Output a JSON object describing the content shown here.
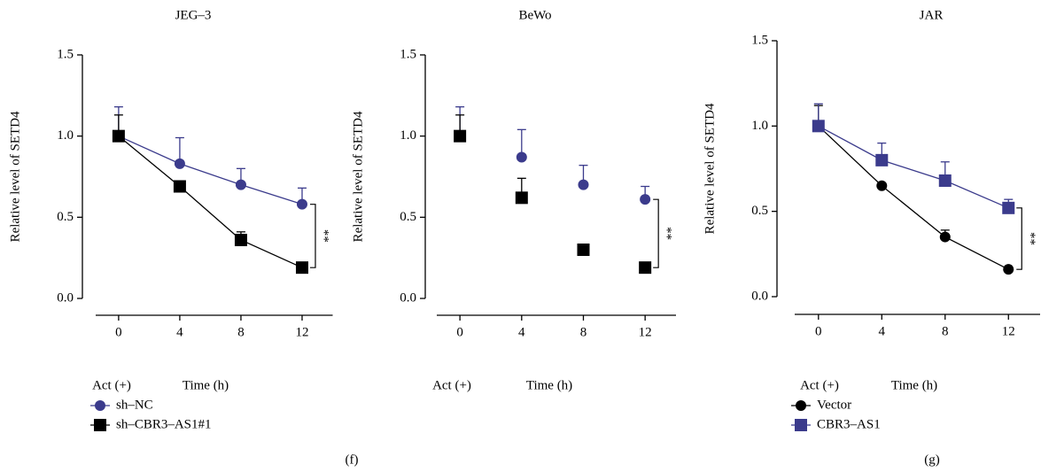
{
  "chart_data": [
    {
      "type": "line",
      "title": "JEG–3",
      "ylabel": "Relative level of SETD4",
      "xlabel": "Time (h)",
      "treatment_label": "Act (+)",
      "significance": "**",
      "x": [
        0,
        4,
        8,
        12
      ],
      "xlim": [
        -1.5,
        14
      ],
      "xticks": [
        0,
        4,
        8,
        12
      ],
      "ylim": [
        0,
        1.5
      ],
      "yticks": [
        {
          "value": 0,
          "label": "0.0"
        },
        {
          "value": 0.5,
          "label": "0.5"
        },
        {
          "value": 1.0,
          "label": "1.0"
        },
        {
          "value": 1.5,
          "label": "1.5"
        }
      ],
      "legend": "bottom-left",
      "series": [
        {
          "name": "sh–NC",
          "color": "#3b3b8c",
          "marker": "circle",
          "values": [
            1.0,
            0.83,
            0.7,
            0.58
          ],
          "errors": [
            0.18,
            0.16,
            0.1,
            0.1
          ]
        },
        {
          "name": "sh–CBR3–AS1#1",
          "color": "#000000",
          "marker": "square",
          "values": [
            1.0,
            0.69,
            0.36,
            0.19
          ],
          "errors": [
            0.13,
            0.03,
            0.05,
            0.01
          ]
        }
      ]
    },
    {
      "type": "scatter",
      "title": "BeWo",
      "ylabel": "Relative level of SETD4",
      "xlabel": "Time (h)",
      "treatment_label": "Act (+)",
      "significance": "**",
      "x": [
        0,
        4,
        8,
        12
      ],
      "xlim": [
        -1.5,
        14
      ],
      "xticks": [
        0,
        4,
        8,
        12
      ],
      "ylim": [
        0,
        1.5
      ],
      "yticks": [
        {
          "value": 0,
          "label": "0.0"
        },
        {
          "value": 0.5,
          "label": "0.5"
        },
        {
          "value": 1.0,
          "label": "1.0"
        },
        {
          "value": 1.5,
          "label": "1.5"
        }
      ],
      "series": [
        {
          "color": "#3b3b8c",
          "marker": "circle",
          "values": [
            1.0,
            0.87,
            0.7,
            0.61
          ],
          "errors": [
            0.18,
            0.17,
            0.12,
            0.08
          ]
        },
        {
          "color": "#000000",
          "marker": "square",
          "values": [
            1.0,
            0.62,
            0.3,
            0.19
          ],
          "errors": [
            0.13,
            0.12,
            0.03,
            0.01
          ]
        }
      ]
    },
    {
      "type": "line",
      "title": "JAR",
      "ylabel": "Relative level of SETD4",
      "xlabel": "Time (h)",
      "treatment_label": "Act (+)",
      "significance": "**",
      "x": [
        0,
        4,
        8,
        12
      ],
      "xlim": [
        -1.5,
        14
      ],
      "xticks": [
        0,
        4,
        8,
        12
      ],
      "ylim": [
        0,
        1.5
      ],
      "yticks": [
        {
          "value": 0,
          "label": "0.0"
        },
        {
          "value": 0.5,
          "label": "0.5"
        },
        {
          "value": 1.0,
          "label": "1.0"
        },
        {
          "value": 1.5,
          "label": "1.5"
        }
      ],
      "legend": "bottom-left",
      "series": [
        {
          "name": "Vector",
          "color": "#000000",
          "marker": "circle",
          "values": [
            1.0,
            0.65,
            0.35,
            0.16
          ],
          "errors": [
            0.12,
            0.01,
            0.04,
            0.01
          ]
        },
        {
          "name": "CBR3–AS1",
          "color": "#3b3b8c",
          "marker": "square",
          "values": [
            1.0,
            0.8,
            0.68,
            0.52
          ],
          "errors": [
            0.13,
            0.1,
            0.11,
            0.05
          ]
        }
      ]
    }
  ],
  "panel_labels": [
    "(f)",
    "(g)"
  ]
}
